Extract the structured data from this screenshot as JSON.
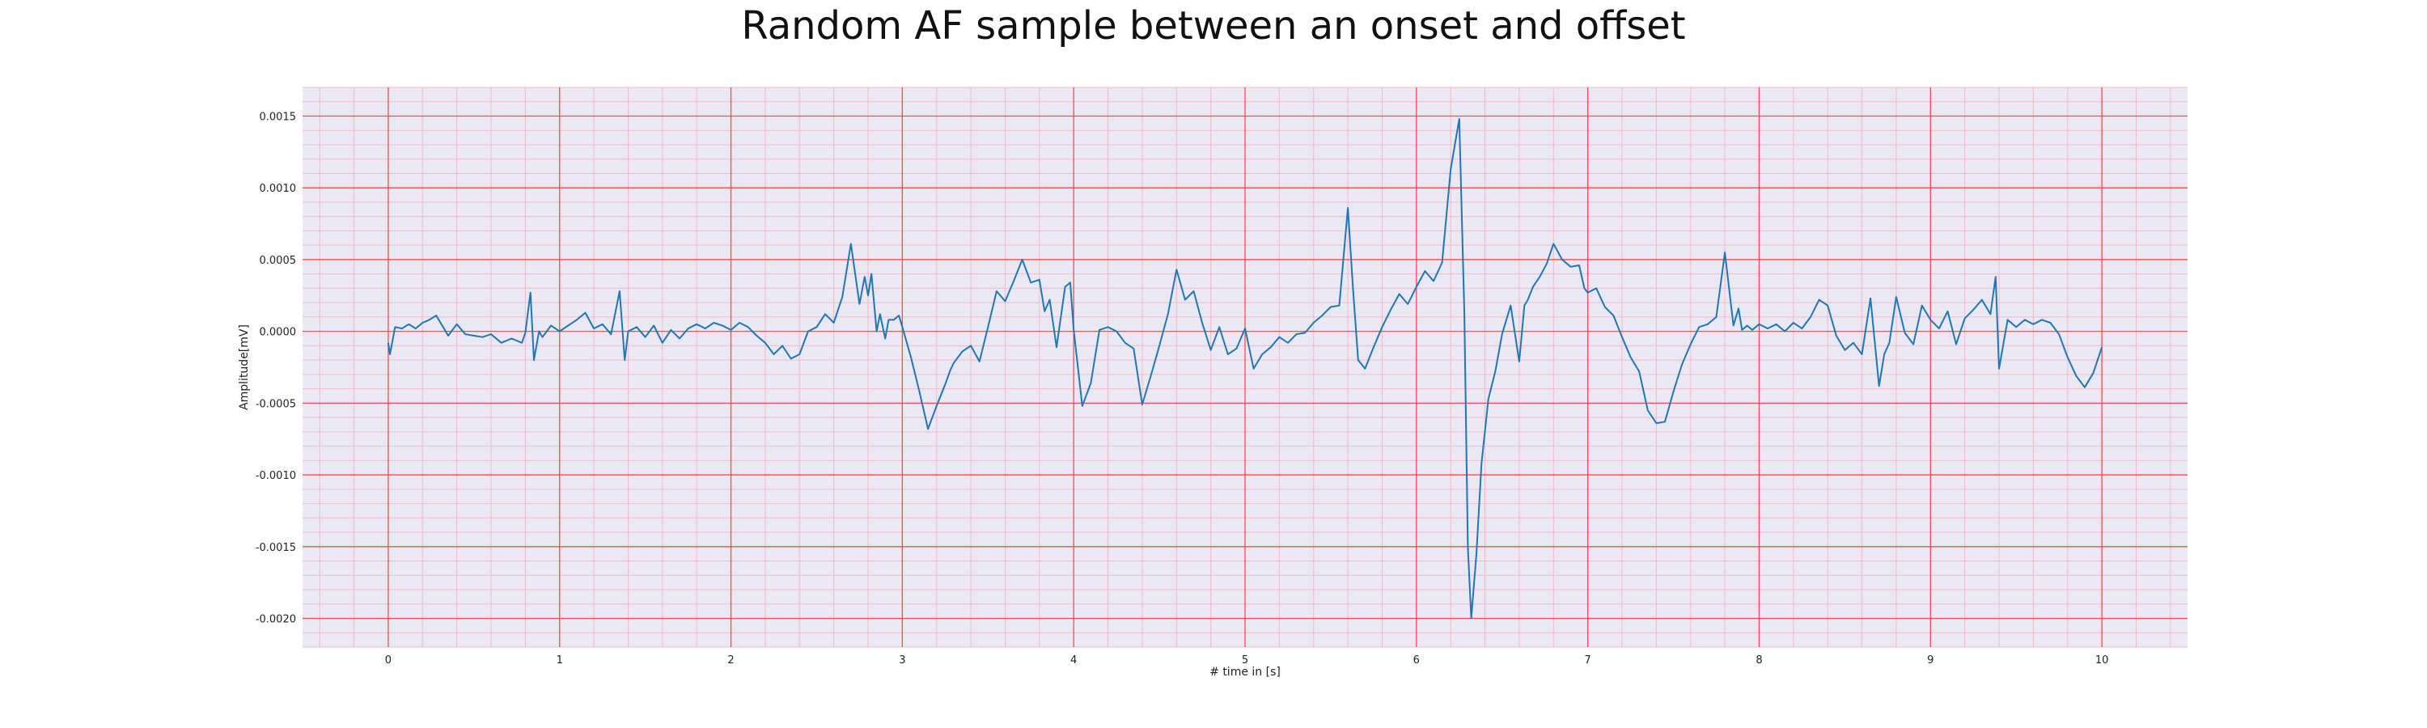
{
  "chart_data": {
    "type": "line",
    "title": "Random AF sample between an onset and offset",
    "xlabel": "# time in [s]",
    "ylabel": "Amplitude[mV]",
    "xlim": [
      -0.5,
      10.5
    ],
    "ylim": [
      -0.0022,
      0.0017
    ],
    "xticks": [
      0,
      1,
      2,
      3,
      4,
      5,
      6,
      7,
      8,
      9,
      10
    ],
    "xtick_labels": [
      "0",
      "1",
      "2",
      "3",
      "4",
      "5",
      "6",
      "7",
      "8",
      "9",
      "10"
    ],
    "yticks": [
      0.0015,
      0.001,
      0.0005,
      0.0,
      -0.0005,
      -0.001,
      -0.0015,
      -0.002
    ],
    "ytick_labels": [
      "0.0015",
      "0.0010",
      "0.0005",
      "0.0000",
      "-0.0005",
      "-0.0010",
      "-0.0015",
      "-0.0020"
    ],
    "grid": "major red, minor pink",
    "colors": {
      "line": "#1f77b4",
      "background": "#eae8f2",
      "major_grid": "#ff4a4a",
      "minor_grid": "#f6b8c8"
    },
    "series": [
      {
        "x": [
          0.0,
          0.01,
          0.04,
          0.08,
          0.12,
          0.16,
          0.2,
          0.24,
          0.28,
          0.32,
          0.35,
          0.4,
          0.45,
          0.5,
          0.55,
          0.6,
          0.66,
          0.72,
          0.78,
          0.8,
          0.83,
          0.85,
          0.88,
          0.9,
          0.95,
          1.0,
          1.05,
          1.1,
          1.15,
          1.2,
          1.25,
          1.3,
          1.35,
          1.38,
          1.4,
          1.45,
          1.5,
          1.55,
          1.6,
          1.65,
          1.7,
          1.75,
          1.8,
          1.85,
          1.9,
          1.95,
          2.0,
          2.05,
          2.1,
          2.15,
          2.2,
          2.25,
          2.3,
          2.35,
          2.4,
          2.45,
          2.5,
          2.55,
          2.6,
          2.65,
          2.7,
          2.75,
          2.78,
          2.8,
          2.82,
          2.85,
          2.87,
          2.9,
          2.92,
          2.95,
          2.98,
          3.0,
          3.05,
          3.1,
          3.15,
          3.2,
          3.25,
          3.28,
          3.3,
          3.35,
          3.4,
          3.45,
          3.5,
          3.55,
          3.6,
          3.65,
          3.7,
          3.75,
          3.8,
          3.83,
          3.86,
          3.9,
          3.95,
          3.98,
          4.0,
          4.05,
          4.1,
          4.15,
          4.2,
          4.25,
          4.3,
          4.35,
          4.4,
          4.45,
          4.5,
          4.55,
          4.6,
          4.65,
          4.7,
          4.75,
          4.8,
          4.85,
          4.9,
          4.95,
          5.0,
          5.05,
          5.1,
          5.15,
          5.2,
          5.25,
          5.3,
          5.35,
          5.4,
          5.45,
          5.5,
          5.55,
          5.6,
          5.63,
          5.66,
          5.7,
          5.75,
          5.8,
          5.85,
          5.9,
          5.95,
          6.0,
          6.05,
          6.1,
          6.15,
          6.2,
          6.25,
          6.28,
          6.3,
          6.32,
          6.35,
          6.38,
          6.42,
          6.46,
          6.5,
          6.55,
          6.6,
          6.63,
          6.65,
          6.68,
          6.72,
          6.76,
          6.8,
          6.85,
          6.9,
          6.95,
          6.98,
          7.0,
          7.05,
          7.1,
          7.15,
          7.2,
          7.25,
          7.3,
          7.35,
          7.4,
          7.45,
          7.5,
          7.55,
          7.6,
          7.65,
          7.7,
          7.75,
          7.8,
          7.85,
          7.88,
          7.9,
          7.93,
          7.96,
          8.0,
          8.05,
          8.1,
          8.15,
          8.2,
          8.25,
          8.3,
          8.35,
          8.4,
          8.45,
          8.5,
          8.55,
          8.6,
          8.65,
          8.7,
          8.73,
          8.76,
          8.8,
          8.85,
          8.9,
          8.95,
          9.0,
          9.05,
          9.1,
          9.15,
          9.2,
          9.25,
          9.3,
          9.35,
          9.38,
          9.4,
          9.45,
          9.5,
          9.55,
          9.6,
          9.65,
          9.7,
          9.75,
          9.8,
          9.85,
          9.9,
          9.95,
          10.0
        ],
        "y": [
          -8e-05,
          -0.00016,
          3e-05,
          2e-05,
          5e-05,
          2e-05,
          6e-05,
          8e-05,
          0.00011,
          3e-05,
          -3e-05,
          5e-05,
          -2e-05,
          -3e-05,
          -4e-05,
          -2e-05,
          -8e-05,
          -5e-05,
          -8e-05,
          -1e-05,
          0.00027,
          -0.0002,
          0.0,
          -4e-05,
          4e-05,
          0.0,
          4e-05,
          8e-05,
          0.00013,
          2e-05,
          5e-05,
          -2e-05,
          0.00028,
          -0.0002,
          0.0,
          3e-05,
          -4e-05,
          4e-05,
          -8e-05,
          1e-05,
          -5e-05,
          2e-05,
          5e-05,
          2e-05,
          6e-05,
          4e-05,
          1e-05,
          6e-05,
          3e-05,
          -3e-05,
          -8e-05,
          -0.00016,
          -0.0001,
          -0.00019,
          -0.00016,
          0.0,
          3e-05,
          0.00012,
          6e-05,
          0.00024,
          0.00061,
          0.00019,
          0.00038,
          0.00025,
          0.0004,
          0.0,
          0.00012,
          -5e-05,
          8e-05,
          8e-05,
          0.00011,
          3e-05,
          -0.00018,
          -0.00042,
          -0.00068,
          -0.00052,
          -0.00037,
          -0.00027,
          -0.00022,
          -0.00014,
          -0.0001,
          -0.00021,
          3e-05,
          0.00028,
          0.00021,
          0.00035,
          0.0005,
          0.00034,
          0.00036,
          0.00014,
          0.00022,
          -0.00011,
          0.00031,
          0.00034,
          1e-05,
          -0.00052,
          -0.00036,
          1e-05,
          3e-05,
          0.0,
          -8e-05,
          -0.00012,
          -0.00051,
          -0.00031,
          -0.0001,
          0.00012,
          0.00043,
          0.00022,
          0.00028,
          6e-05,
          -0.00013,
          3e-05,
          -0.00016,
          -0.00012,
          2e-05,
          -0.00026,
          -0.00016,
          -0.00011,
          -4e-05,
          -8e-05,
          -2e-05,
          -1e-05,
          6e-05,
          0.00011,
          0.00017,
          0.00018,
          0.00086,
          0.0003,
          -0.0002,
          -0.00026,
          -0.00011,
          3e-05,
          0.00015,
          0.00026,
          0.00019,
          0.00031,
          0.00042,
          0.00035,
          0.00048,
          0.00113,
          0.00148,
          0.00012,
          -0.0015,
          -0.002,
          -0.00155,
          -0.00092,
          -0.00047,
          -0.00028,
          -2e-05,
          0.00018,
          -0.00021,
          0.00018,
          0.00022,
          0.00031,
          0.00038,
          0.00047,
          0.00061,
          0.0005,
          0.00045,
          0.00046,
          0.0003,
          0.00027,
          0.0003,
          0.00017,
          0.00011,
          -4e-05,
          -0.00018,
          -0.00028,
          -0.00055,
          -0.00064,
          -0.00063,
          -0.00042,
          -0.00023,
          -9e-05,
          3e-05,
          5e-05,
          0.0001,
          0.00055,
          4e-05,
          0.00016,
          1e-05,
          4e-05,
          1e-05,
          5e-05,
          2e-05,
          5e-05,
          0.0,
          6e-05,
          2e-05,
          0.0001,
          0.00022,
          0.00018,
          -3e-05,
          -0.00013,
          -8e-05,
          -0.00016,
          0.00023,
          -0.00038,
          -0.00016,
          -8e-05,
          0.00024,
          -1e-05,
          -9e-05,
          0.00018,
          8e-05,
          2e-05,
          0.00014,
          -9e-05,
          9e-05,
          0.00015,
          0.00022,
          0.00012,
          0.00038,
          -0.00026,
          8e-05,
          3e-05,
          8e-05,
          5e-05,
          8e-05,
          6e-05,
          -2e-05,
          -0.00018,
          -0.00031,
          -0.00039,
          -0.00029,
          -0.00011
        ]
      }
    ]
  }
}
